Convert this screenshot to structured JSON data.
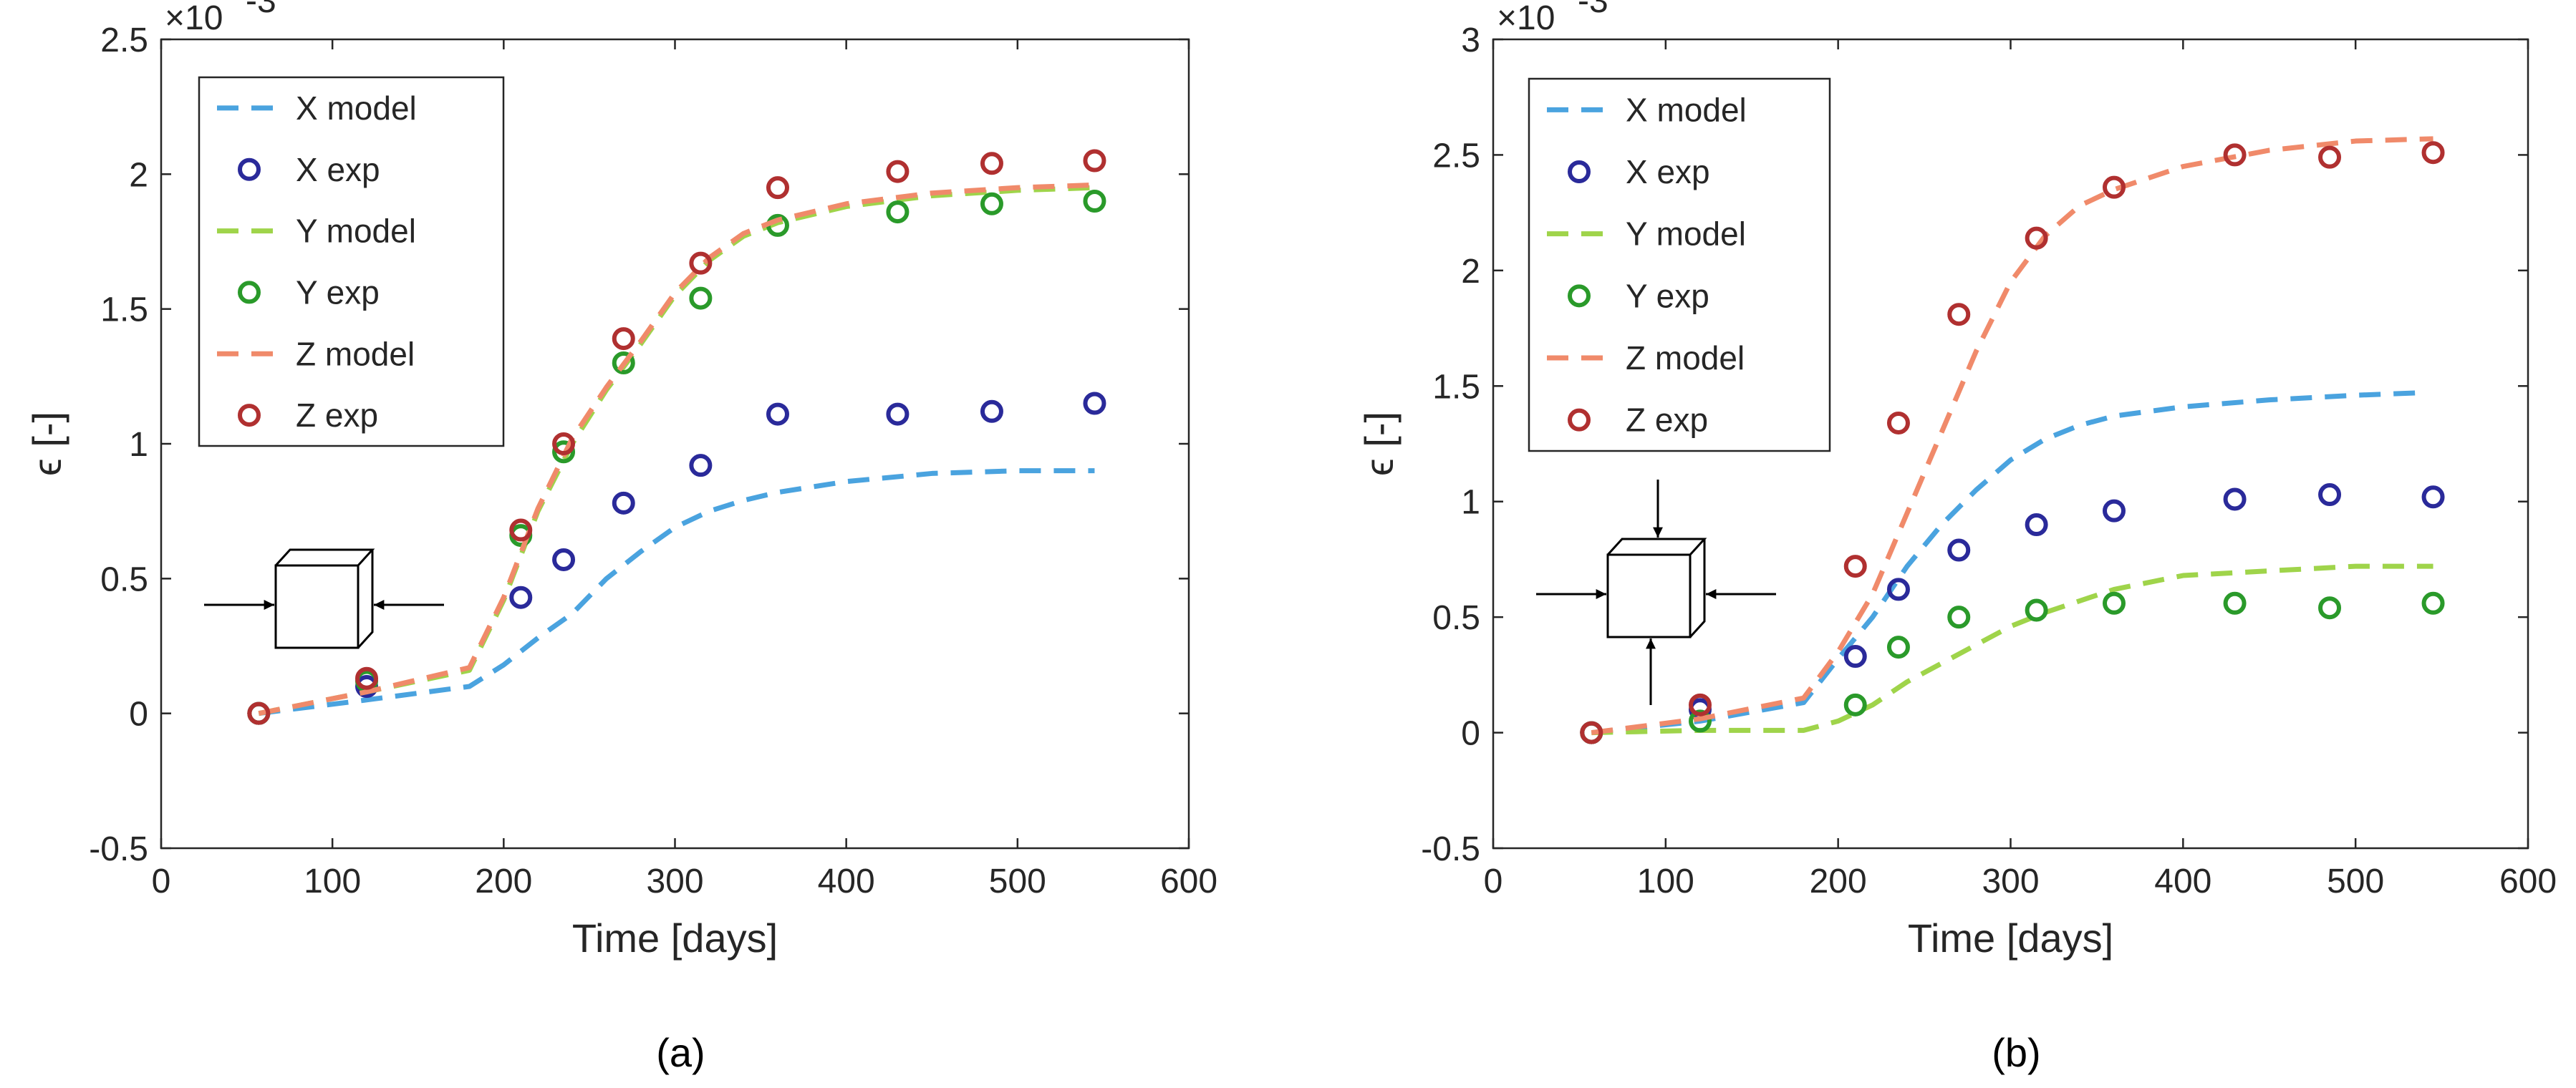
{
  "chart_data": [
    {
      "type": "line",
      "caption": "(a)",
      "xlabel": "Time [days]",
      "ylabel": "ϵ [-]",
      "y_multiplier": "×10",
      "y_exponent": "-3",
      "xlim": [
        0,
        600
      ],
      "ylim": [
        -0.5,
        2.5
      ],
      "xticks": [
        0,
        100,
        200,
        300,
        400,
        500,
        600
      ],
      "xtick_labels": [
        "0",
        "100",
        "200",
        "300",
        "400",
        "500",
        "600"
      ],
      "yticks": [
        -0.5,
        0,
        0.5,
        1,
        1.5,
        2,
        2.5
      ],
      "ytick_labels": [
        "-0.5",
        "0",
        "0.5",
        "1",
        "1.5",
        "2",
        "2.5"
      ],
      "grid": false,
      "legend_position": "top-left",
      "inset_icon": "cube-compressed-x",
      "series": [
        {
          "name": "X model",
          "style": "dashed",
          "color": "#4aa3df",
          "x": [
            57,
            120,
            180,
            200,
            220,
            240,
            260,
            280,
            300,
            320,
            340,
            360,
            400,
            450,
            500,
            545
          ],
          "y": [
            0,
            0.05,
            0.1,
            0.18,
            0.28,
            0.37,
            0.5,
            0.6,
            0.69,
            0.75,
            0.79,
            0.82,
            0.86,
            0.89,
            0.9,
            0.9
          ]
        },
        {
          "name": "X exp",
          "style": "marker",
          "color": "#2a2a9a",
          "x": [
            57,
            120,
            210,
            235,
            270,
            315,
            360,
            430,
            485,
            545
          ],
          "y": [
            0,
            0.1,
            0.43,
            0.57,
            0.78,
            0.92,
            1.11,
            1.11,
            1.12,
            1.15
          ]
        },
        {
          "name": "Y model",
          "style": "dashed",
          "color": "#9fd44a",
          "x": [
            57,
            120,
            180,
            200,
            220,
            240,
            260,
            280,
            300,
            320,
            340,
            360,
            400,
            450,
            500,
            545
          ],
          "y": [
            0,
            0.08,
            0.16,
            0.42,
            0.75,
            1.0,
            1.2,
            1.37,
            1.55,
            1.68,
            1.77,
            1.82,
            1.88,
            1.92,
            1.94,
            1.95
          ]
        },
        {
          "name": "Y exp",
          "style": "marker",
          "color": "#2a9a2a",
          "x": [
            57,
            120,
            210,
            235,
            270,
            315,
            360,
            430,
            485,
            545
          ],
          "y": [
            0,
            0.12,
            0.66,
            0.97,
            1.3,
            1.54,
            1.81,
            1.86,
            1.89,
            1.9
          ]
        },
        {
          "name": "Z model",
          "style": "dashed",
          "color": "#f08a6a",
          "x": [
            57,
            120,
            180,
            200,
            220,
            240,
            260,
            280,
            300,
            320,
            340,
            360,
            400,
            450,
            500,
            545
          ],
          "y": [
            0,
            0.08,
            0.17,
            0.43,
            0.76,
            1.02,
            1.21,
            1.38,
            1.56,
            1.69,
            1.78,
            1.83,
            1.89,
            1.93,
            1.95,
            1.96
          ]
        },
        {
          "name": "Z exp",
          "style": "marker",
          "color": "#b03030",
          "x": [
            57,
            120,
            210,
            235,
            270,
            315,
            360,
            430,
            485,
            545
          ],
          "y": [
            0,
            0.13,
            0.68,
            1.0,
            1.39,
            1.67,
            1.95,
            2.01,
            2.04,
            2.05
          ]
        }
      ]
    },
    {
      "type": "line",
      "caption": "(b)",
      "xlabel": "Time [days]",
      "ylabel": "ϵ [-]",
      "y_multiplier": "×10",
      "y_exponent": "-3",
      "xlim": [
        0,
        600
      ],
      "ylim": [
        -0.5,
        3
      ],
      "xticks": [
        0,
        100,
        200,
        300,
        400,
        500,
        600
      ],
      "xtick_labels": [
        "0",
        "100",
        "200",
        "300",
        "400",
        "500",
        "600"
      ],
      "yticks": [
        -0.5,
        0,
        0.5,
        1,
        1.5,
        2,
        2.5,
        3
      ],
      "ytick_labels": [
        "-0.5",
        "0",
        "0.5",
        "1",
        "1.5",
        "2",
        "2.5",
        "3"
      ],
      "grid": false,
      "legend_position": "top-left",
      "inset_icon": "cube-compressed-xy",
      "series": [
        {
          "name": "X model",
          "style": "dashed",
          "color": "#4aa3df",
          "x": [
            57,
            120,
            180,
            200,
            220,
            240,
            260,
            280,
            300,
            320,
            340,
            360,
            400,
            450,
            500,
            535
          ],
          "y": [
            0,
            0.05,
            0.13,
            0.32,
            0.5,
            0.72,
            0.9,
            1.05,
            1.18,
            1.27,
            1.33,
            1.37,
            1.41,
            1.44,
            1.46,
            1.47
          ]
        },
        {
          "name": "X exp",
          "style": "marker",
          "color": "#2a2a9a",
          "x": [
            57,
            120,
            210,
            235,
            270,
            315,
            360,
            430,
            485,
            545
          ],
          "y": [
            0,
            0.1,
            0.33,
            0.62,
            0.79,
            0.9,
            0.96,
            1.01,
            1.03,
            1.02
          ]
        },
        {
          "name": "Y model",
          "style": "dashed",
          "color": "#9fd44a",
          "x": [
            57,
            120,
            180,
            200,
            220,
            240,
            260,
            280,
            300,
            320,
            340,
            360,
            400,
            450,
            500,
            545
          ],
          "y": [
            0,
            0.01,
            0.01,
            0.05,
            0.12,
            0.22,
            0.3,
            0.38,
            0.46,
            0.52,
            0.57,
            0.62,
            0.68,
            0.7,
            0.72,
            0.72
          ]
        },
        {
          "name": "Y exp",
          "style": "marker",
          "color": "#2a9a2a",
          "x": [
            57,
            120,
            210,
            235,
            270,
            315,
            360,
            430,
            485,
            545
          ],
          "y": [
            0,
            0.05,
            0.12,
            0.37,
            0.5,
            0.53,
            0.56,
            0.56,
            0.54,
            0.56
          ]
        },
        {
          "name": "Z model",
          "style": "dashed",
          "color": "#f08a6a",
          "x": [
            57,
            120,
            180,
            200,
            220,
            240,
            260,
            280,
            300,
            320,
            340,
            360,
            400,
            450,
            500,
            545
          ],
          "y": [
            0,
            0.06,
            0.15,
            0.35,
            0.6,
            0.95,
            1.3,
            1.65,
            1.95,
            2.15,
            2.28,
            2.35,
            2.45,
            2.52,
            2.56,
            2.57
          ]
        },
        {
          "name": "Z exp",
          "style": "marker",
          "color": "#b03030",
          "x": [
            57,
            120,
            210,
            235,
            270,
            315,
            360,
            430,
            485,
            545
          ],
          "y": [
            0,
            0.12,
            0.72,
            1.34,
            1.81,
            2.14,
            2.36,
            2.5,
            2.49,
            2.51
          ]
        }
      ]
    }
  ]
}
